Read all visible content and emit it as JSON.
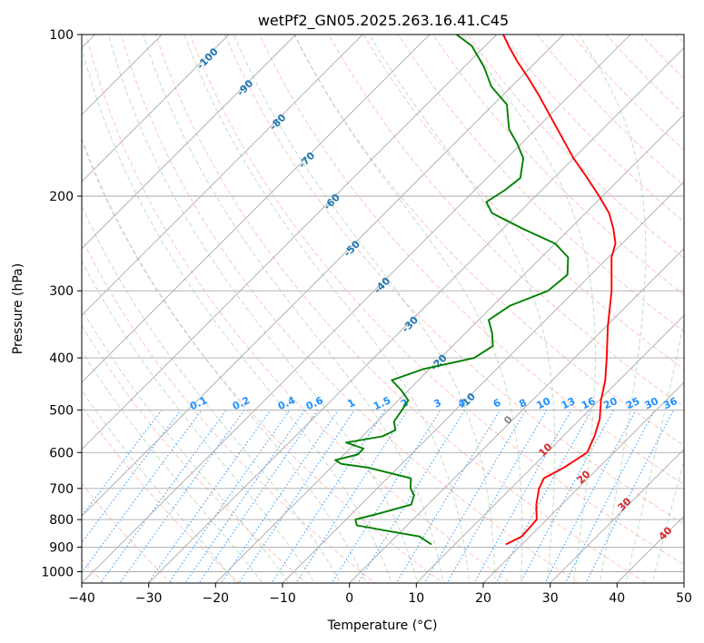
{
  "chart_data": {
    "type": "line",
    "title": "wetPf2_GN05.2025.263.16.41.C45",
    "xlabel": "Temperature (°C)",
    "ylabel": "Pressure (hPa)",
    "xlim": [
      -40,
      50
    ],
    "ylim": [
      1050,
      100
    ],
    "y_scale": "log",
    "skew": 1.0,
    "grid": true,
    "pressure_ticks": [
      100,
      200,
      300,
      400,
      500,
      600,
      700,
      800,
      900,
      1000
    ],
    "temperature_ticks": [
      -40,
      -30,
      -20,
      -10,
      0,
      10,
      20,
      30,
      40,
      50
    ],
    "isotherm_labels": [
      "-100",
      "-90",
      "-80",
      "-70",
      "-60",
      "-50",
      "-40",
      "-30",
      "-20",
      "-10"
    ],
    "mixing_ratio_labels": [
      "0.1",
      "0.2",
      "0.4",
      "0.6",
      "1",
      "1.5",
      "2",
      "3",
      "4",
      "6",
      "8",
      "10",
      "13",
      "16",
      "20",
      "25",
      "30",
      "36"
    ],
    "moist_adiabat_labels": [
      "0",
      "10",
      "20",
      "30",
      "40"
    ],
    "series": [
      {
        "color": "#ff0000",
        "variable": "temperature",
        "points": [
          {
            "p": 890,
            "t": 17.6
          },
          {
            "p": 860,
            "t": 18.8
          },
          {
            "p": 800,
            "t": 18.5
          },
          {
            "p": 750,
            "t": 16.2
          },
          {
            "p": 700,
            "t": 14.2
          },
          {
            "p": 670,
            "t": 13.4
          },
          {
            "p": 640,
            "t": 14.8
          },
          {
            "p": 600,
            "t": 16.0
          },
          {
            "p": 560,
            "t": 14.7
          },
          {
            "p": 520,
            "t": 12.9
          },
          {
            "p": 480,
            "t": 10.3
          },
          {
            "p": 440,
            "t": 7.9
          },
          {
            "p": 400,
            "t": 4.8
          },
          {
            "p": 350,
            "t": 0.3
          },
          {
            "p": 300,
            "t": -4.5
          },
          {
            "p": 260,
            "t": -9.5
          },
          {
            "p": 245,
            "t": -11.0
          },
          {
            "p": 230,
            "t": -13.5
          },
          {
            "p": 215,
            "t": -16.5
          },
          {
            "p": 200,
            "t": -20.5
          },
          {
            "p": 185,
            "t": -25.0
          },
          {
            "p": 170,
            "t": -30.0
          },
          {
            "p": 155,
            "t": -35.0
          },
          {
            "p": 140,
            "t": -40.5
          },
          {
            "p": 130,
            "t": -44.5
          },
          {
            "p": 120,
            "t": -49.0
          },
          {
            "p": 112,
            "t": -53.0
          },
          {
            "p": 105,
            "t": -56.5
          },
          {
            "p": 100,
            "t": -59.0
          }
        ]
      },
      {
        "color": "#008000",
        "variable": "dewpoint",
        "points": [
          {
            "p": 890,
            "t": 6.5
          },
          {
            "p": 860,
            "t": 3.5
          },
          {
            "p": 840,
            "t": -2.0
          },
          {
            "p": 820,
            "t": -7.5
          },
          {
            "p": 800,
            "t": -8.6
          },
          {
            "p": 780,
            "t": -6.0
          },
          {
            "p": 750,
            "t": -2.5
          },
          {
            "p": 720,
            "t": -3.5
          },
          {
            "p": 700,
            "t": -5.0
          },
          {
            "p": 670,
            "t": -6.5
          },
          {
            "p": 640,
            "t": -14.5
          },
          {
            "p": 630,
            "t": -19.0
          },
          {
            "p": 620,
            "t": -20.5
          },
          {
            "p": 605,
            "t": -18.0
          },
          {
            "p": 590,
            "t": -18.0
          },
          {
            "p": 575,
            "t": -21.5
          },
          {
            "p": 560,
            "t": -17.0
          },
          {
            "p": 545,
            "t": -16.0
          },
          {
            "p": 525,
            "t": -17.5
          },
          {
            "p": 500,
            "t": -18.0
          },
          {
            "p": 480,
            "t": -18.5
          },
          {
            "p": 460,
            "t": -21.0
          },
          {
            "p": 440,
            "t": -24.0
          },
          {
            "p": 420,
            "t": -21.0
          },
          {
            "p": 400,
            "t": -15.0
          },
          {
            "p": 380,
            "t": -14.0
          },
          {
            "p": 360,
            "t": -16.0
          },
          {
            "p": 340,
            "t": -18.5
          },
          {
            "p": 320,
            "t": -17.5
          },
          {
            "p": 300,
            "t": -14.0
          },
          {
            "p": 280,
            "t": -13.5
          },
          {
            "p": 260,
            "t": -16.0
          },
          {
            "p": 245,
            "t": -20.0
          },
          {
            "p": 230,
            "t": -27.0
          },
          {
            "p": 215,
            "t": -34.0
          },
          {
            "p": 205,
            "t": -36.5
          },
          {
            "p": 195,
            "t": -35.5
          },
          {
            "p": 185,
            "t": -35.0
          },
          {
            "p": 170,
            "t": -37.5
          },
          {
            "p": 160,
            "t": -40.5
          },
          {
            "p": 150,
            "t": -44.0
          },
          {
            "p": 135,
            "t": -48.0
          },
          {
            "p": 125,
            "t": -53.0
          },
          {
            "p": 115,
            "t": -57.0
          },
          {
            "p": 105,
            "t": -62.0
          },
          {
            "p": 100,
            "t": -66.0
          }
        ]
      }
    ],
    "colors": {
      "isotherm": "#aaaaaa",
      "dry_adiabat": "#fa8072",
      "moist_adiabat": "#8fbc8f",
      "mixing_ratio": "#1e90ff",
      "isotherm_label": "#1f77b4",
      "mixing_label": "#1e90ff",
      "moist_label": "#d62728"
    }
  }
}
